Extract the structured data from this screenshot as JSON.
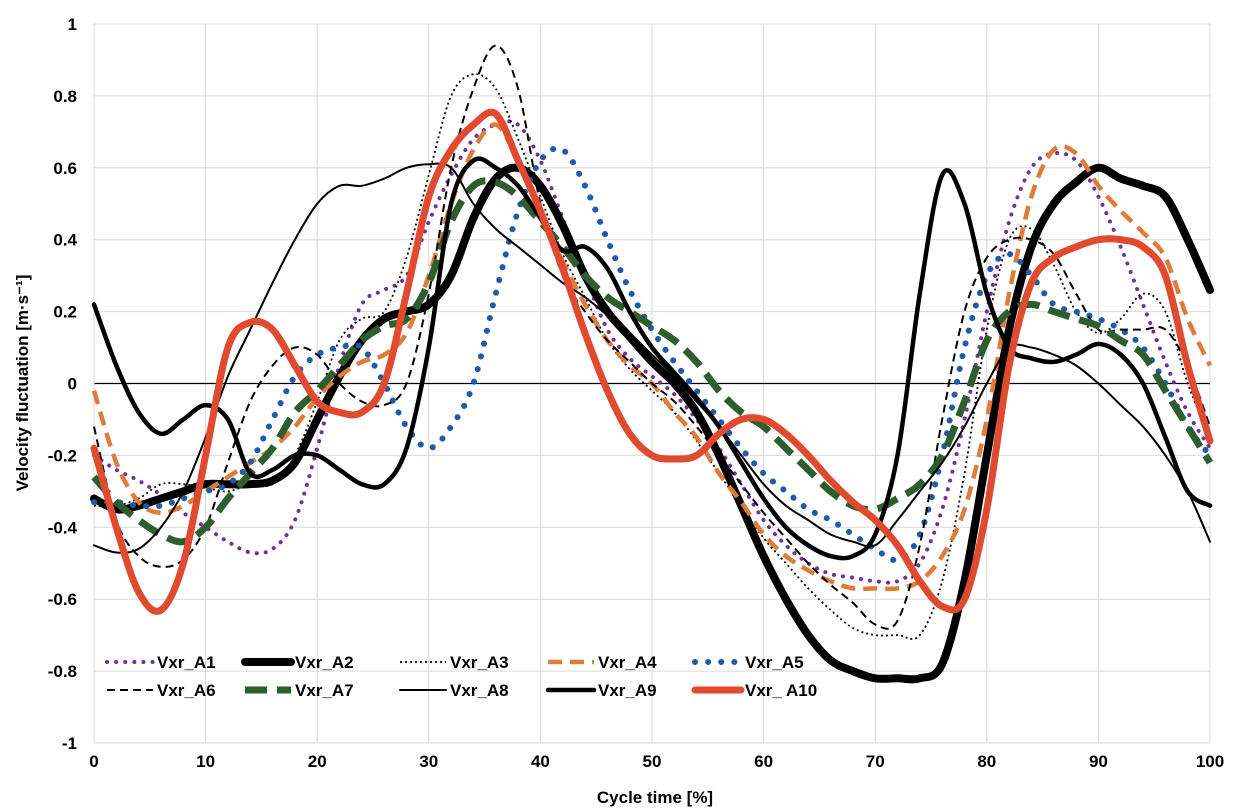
{
  "chart_data": {
    "type": "line",
    "xlabel": "Cycle time [%]",
    "ylabel": "Velocity fluctuation  [m·s⁻¹]",
    "xlim": [
      0,
      100
    ],
    "ylim": [
      -1,
      1
    ],
    "xticks": [
      "0",
      "10",
      "20",
      "30",
      "40",
      "50",
      "60",
      "70",
      "80",
      "90",
      "100"
    ],
    "yticks": [
      "1",
      "0.8",
      "0.6",
      "0.4",
      "0.2",
      "0",
      "-0.2",
      "-0.4",
      "-0.6",
      "-0.8",
      "-1"
    ],
    "grid": true,
    "legend_position": "bottom-left",
    "series": [
      {
        "name": "Vxr_A1",
        "color": "#7030a0",
        "style": "dotted",
        "width": 4,
        "x": [
          0,
          2,
          4,
          6,
          8,
          10,
          12,
          14,
          16,
          18,
          20,
          22,
          24,
          26,
          28,
          30,
          32,
          34,
          36,
          38,
          40,
          42,
          44,
          46,
          48,
          50,
          52,
          54,
          56,
          58,
          60,
          62,
          64,
          66,
          68,
          70,
          72,
          74,
          76,
          78,
          80,
          82,
          84,
          86,
          88,
          90,
          92,
          94,
          96,
          98,
          100
        ],
        "y": [
          -0.2,
          -0.24,
          -0.27,
          -0.31,
          -0.36,
          -0.4,
          -0.44,
          -0.47,
          -0.46,
          -0.38,
          -0.18,
          0.05,
          0.22,
          0.26,
          0.3,
          0.45,
          0.58,
          0.68,
          0.72,
          0.72,
          0.62,
          0.46,
          0.3,
          0.15,
          0.07,
          0.02,
          -0.03,
          -0.1,
          -0.18,
          -0.28,
          -0.38,
          -0.45,
          -0.5,
          -0.53,
          -0.54,
          -0.55,
          -0.55,
          -0.5,
          -0.35,
          -0.1,
          0.2,
          0.45,
          0.6,
          0.64,
          0.62,
          0.52,
          0.38,
          0.22,
          0.06,
          -0.08,
          -0.18
        ]
      },
      {
        "name": "Vxr_A2",
        "color": "#000000",
        "style": "solid",
        "width": 8,
        "x": [
          0,
          2,
          4,
          6,
          8,
          10,
          12,
          14,
          16,
          18,
          20,
          22,
          24,
          26,
          28,
          30,
          32,
          34,
          36,
          38,
          40,
          42,
          44,
          46,
          48,
          50,
          52,
          54,
          56,
          58,
          60,
          62,
          64,
          66,
          68,
          70,
          72,
          74,
          76,
          78,
          80,
          82,
          84,
          86,
          88,
          90,
          92,
          94,
          96,
          98,
          100
        ],
        "y": [
          -0.32,
          -0.35,
          -0.34,
          -0.32,
          -0.3,
          -0.28,
          -0.28,
          -0.28,
          -0.27,
          -0.22,
          -0.1,
          0.02,
          0.12,
          0.18,
          0.2,
          0.22,
          0.3,
          0.46,
          0.57,
          0.6,
          0.55,
          0.44,
          0.3,
          0.2,
          0.13,
          0.06,
          0.0,
          -0.08,
          -0.2,
          -0.34,
          -0.48,
          -0.6,
          -0.7,
          -0.77,
          -0.8,
          -0.82,
          -0.82,
          -0.82,
          -0.78,
          -0.55,
          -0.2,
          0.15,
          0.38,
          0.5,
          0.56,
          0.6,
          0.57,
          0.55,
          0.52,
          0.4,
          0.26
        ]
      },
      {
        "name": "Vxr_A3",
        "color": "#000000",
        "style": "dotted-fine",
        "width": 1.8,
        "x": [
          0,
          2,
          4,
          6,
          8,
          10,
          12,
          14,
          16,
          18,
          20,
          22,
          24,
          26,
          28,
          30,
          32,
          34,
          36,
          38,
          40,
          42,
          44,
          46,
          48,
          50,
          52,
          54,
          56,
          58,
          60,
          62,
          64,
          66,
          68,
          70,
          72,
          74,
          76,
          78,
          80,
          82,
          84,
          86,
          88,
          90,
          92,
          94,
          96,
          98,
          100
        ],
        "y": [
          -0.34,
          -0.34,
          -0.32,
          -0.28,
          -0.28,
          -0.29,
          -0.3,
          -0.28,
          -0.28,
          -0.2,
          -0.05,
          0.12,
          0.18,
          0.2,
          0.35,
          0.58,
          0.8,
          0.86,
          0.82,
          0.68,
          0.52,
          0.36,
          0.24,
          0.12,
          0.04,
          -0.02,
          -0.08,
          -0.16,
          -0.25,
          -0.34,
          -0.43,
          -0.5,
          -0.57,
          -0.63,
          -0.68,
          -0.7,
          -0.7,
          -0.7,
          -0.55,
          -0.25,
          0.15,
          0.4,
          0.43,
          0.33,
          0.2,
          0.14,
          0.18,
          0.25,
          0.2,
          0.0,
          -0.15
        ]
      },
      {
        "name": "Vxr_A4",
        "color": "#e07b39",
        "style": "dashed",
        "width": 4.5,
        "x": [
          0,
          2,
          4,
          6,
          8,
          10,
          12,
          14,
          16,
          18,
          20,
          22,
          24,
          26,
          28,
          30,
          32,
          34,
          36,
          38,
          40,
          42,
          44,
          46,
          48,
          50,
          52,
          54,
          56,
          58,
          60,
          62,
          64,
          66,
          68,
          70,
          72,
          74,
          76,
          78,
          80,
          82,
          84,
          86,
          88,
          90,
          92,
          94,
          96,
          98,
          100
        ],
        "y": [
          -0.02,
          -0.22,
          -0.33,
          -0.36,
          -0.34,
          -0.3,
          -0.26,
          -0.22,
          -0.18,
          -0.12,
          -0.04,
          0.02,
          0.06,
          0.08,
          0.14,
          0.3,
          0.5,
          0.65,
          0.72,
          0.62,
          0.48,
          0.34,
          0.22,
          0.12,
          0.05,
          0.0,
          -0.08,
          -0.15,
          -0.25,
          -0.33,
          -0.42,
          -0.48,
          -0.52,
          -0.55,
          -0.57,
          -0.57,
          -0.57,
          -0.55,
          -0.48,
          -0.35,
          -0.1,
          0.25,
          0.52,
          0.65,
          0.64,
          0.55,
          0.48,
          0.42,
          0.35,
          0.18,
          0.05
        ]
      },
      {
        "name": "Vxr_A5",
        "color": "#1f5ba8",
        "style": "dots",
        "width": 6,
        "x": [
          0,
          2,
          4,
          6,
          8,
          10,
          12,
          14,
          16,
          18,
          20,
          22,
          24,
          26,
          28,
          30,
          32,
          34,
          36,
          38,
          40,
          42,
          44,
          46,
          48,
          50,
          52,
          54,
          56,
          58,
          60,
          62,
          64,
          66,
          68,
          70,
          72,
          74,
          76,
          78,
          80,
          82,
          84,
          86,
          88,
          90,
          92,
          94,
          96,
          98,
          100
        ],
        "y": [
          -0.33,
          -0.33,
          -0.34,
          -0.34,
          -0.32,
          -0.3,
          -0.28,
          -0.22,
          -0.1,
          0.02,
          0.08,
          0.1,
          0.1,
          0.0,
          -0.12,
          -0.18,
          -0.12,
          0.0,
          0.25,
          0.48,
          0.62,
          0.65,
          0.55,
          0.4,
          0.26,
          0.15,
          0.06,
          -0.02,
          -0.1,
          -0.18,
          -0.25,
          -0.3,
          -0.35,
          -0.38,
          -0.42,
          -0.46,
          -0.49,
          -0.42,
          -0.2,
          0.1,
          0.3,
          0.36,
          0.3,
          0.22,
          0.2,
          0.18,
          0.15,
          0.1,
          0.0,
          -0.12,
          -0.2
        ]
      },
      {
        "name": "Vxr_A6",
        "color": "#000000",
        "style": "dashed-thin",
        "width": 2,
        "x": [
          0,
          2,
          4,
          6,
          8,
          10,
          12,
          14,
          16,
          18,
          20,
          22,
          24,
          26,
          28,
          30,
          32,
          34,
          36,
          38,
          40,
          42,
          44,
          46,
          48,
          50,
          52,
          54,
          56,
          58,
          60,
          62,
          64,
          66,
          68,
          70,
          72,
          74,
          76,
          78,
          80,
          82,
          84,
          86,
          88,
          90,
          92,
          94,
          96,
          98,
          100
        ],
        "y": [
          -0.12,
          -0.38,
          -0.48,
          -0.51,
          -0.49,
          -0.4,
          -0.22,
          -0.05,
          0.05,
          0.1,
          0.08,
          0.0,
          -0.05,
          -0.06,
          0.0,
          0.25,
          0.6,
          0.82,
          0.94,
          0.82,
          0.5,
          0.3,
          0.2,
          0.12,
          0.06,
          0.0,
          -0.05,
          -0.12,
          -0.2,
          -0.28,
          -0.36,
          -0.43,
          -0.5,
          -0.56,
          -0.61,
          -0.67,
          -0.66,
          -0.45,
          -0.1,
          0.2,
          0.35,
          0.4,
          0.4,
          0.36,
          0.25,
          0.15,
          0.15,
          0.15,
          0.15,
          0.05,
          -0.12
        ]
      },
      {
        "name": "Vxr_A7",
        "color": "#2e5e2e",
        "style": "long-dash",
        "width": 7,
        "x": [
          0,
          2,
          4,
          6,
          8,
          10,
          12,
          14,
          16,
          18,
          20,
          22,
          24,
          26,
          28,
          30,
          32,
          34,
          36,
          38,
          40,
          42,
          44,
          46,
          48,
          50,
          52,
          54,
          56,
          58,
          60,
          62,
          64,
          66,
          68,
          70,
          72,
          74,
          76,
          78,
          80,
          82,
          84,
          86,
          88,
          90,
          92,
          94,
          96,
          98,
          100
        ],
        "y": [
          -0.26,
          -0.33,
          -0.38,
          -0.42,
          -0.44,
          -0.4,
          -0.32,
          -0.25,
          -0.18,
          -0.08,
          -0.02,
          0.05,
          0.12,
          0.16,
          0.18,
          0.28,
          0.45,
          0.55,
          0.56,
          0.52,
          0.45,
          0.38,
          0.3,
          0.24,
          0.2,
          0.16,
          0.12,
          0.06,
          -0.02,
          -0.08,
          -0.12,
          -0.18,
          -0.24,
          -0.3,
          -0.34,
          -0.35,
          -0.32,
          -0.28,
          -0.2,
          -0.05,
          0.12,
          0.2,
          0.22,
          0.2,
          0.18,
          0.16,
          0.12,
          0.08,
          -0.02,
          -0.12,
          -0.22
        ]
      },
      {
        "name": "Vxr_A8",
        "color": "#000000",
        "style": "solid",
        "width": 2,
        "x": [
          0,
          2,
          4,
          6,
          8,
          10,
          12,
          14,
          16,
          18,
          20,
          22,
          24,
          26,
          28,
          30,
          32,
          34,
          36,
          38,
          40,
          42,
          44,
          46,
          48,
          50,
          52,
          54,
          56,
          58,
          60,
          62,
          64,
          66,
          68,
          70,
          72,
          74,
          76,
          78,
          80,
          82,
          84,
          86,
          88,
          90,
          92,
          94,
          96,
          98,
          100
        ],
        "y": [
          -0.45,
          -0.47,
          -0.46,
          -0.4,
          -0.3,
          -0.15,
          0.02,
          0.15,
          0.28,
          0.4,
          0.5,
          0.55,
          0.55,
          0.57,
          0.6,
          0.61,
          0.6,
          0.5,
          0.43,
          0.38,
          0.33,
          0.28,
          0.24,
          0.19,
          0.14,
          0.08,
          0.02,
          -0.05,
          -0.12,
          -0.2,
          -0.28,
          -0.34,
          -0.38,
          -0.42,
          -0.44,
          -0.45,
          -0.38,
          -0.3,
          -0.22,
          -0.12,
          0.0,
          0.1,
          0.1,
          0.08,
          0.05,
          0.0,
          -0.06,
          -0.12,
          -0.2,
          -0.3,
          -0.44
        ]
      },
      {
        "name": "Vxr_A9",
        "color": "#000000",
        "style": "solid",
        "width": 4.5,
        "x": [
          0,
          2,
          4,
          6,
          8,
          10,
          12,
          14,
          16,
          18,
          20,
          22,
          24,
          26,
          28,
          30,
          32,
          34,
          36,
          38,
          40,
          42,
          44,
          46,
          48,
          50,
          52,
          54,
          56,
          58,
          60,
          62,
          64,
          66,
          68,
          70,
          72,
          74,
          76,
          78,
          80,
          82,
          84,
          86,
          88,
          90,
          92,
          94,
          96,
          98,
          100
        ],
        "y": [
          0.22,
          0.05,
          -0.08,
          -0.14,
          -0.1,
          -0.06,
          -0.1,
          -0.25,
          -0.24,
          -0.2,
          -0.2,
          -0.24,
          -0.28,
          -0.28,
          -0.18,
          0.1,
          0.5,
          0.62,
          0.6,
          0.55,
          0.46,
          0.37,
          0.38,
          0.32,
          0.2,
          0.1,
          0.03,
          -0.04,
          -0.12,
          -0.22,
          -0.32,
          -0.4,
          -0.45,
          -0.48,
          -0.48,
          -0.42,
          -0.2,
          0.25,
          0.58,
          0.5,
          0.25,
          0.1,
          0.07,
          0.06,
          0.08,
          0.11,
          0.08,
          0.0,
          -0.15,
          -0.3,
          -0.34
        ]
      },
      {
        "name": "Vxr_ A10",
        "color": "#e04a2f",
        "style": "solid",
        "width": 7,
        "x": [
          0,
          2,
          4,
          6,
          8,
          10,
          12,
          14,
          16,
          18,
          20,
          22,
          24,
          26,
          28,
          30,
          32,
          34,
          36,
          38,
          40,
          42,
          44,
          46,
          48,
          50,
          52,
          54,
          56,
          58,
          60,
          62,
          64,
          66,
          68,
          70,
          72,
          74,
          76,
          78,
          80,
          82,
          84,
          86,
          88,
          90,
          92,
          94,
          96,
          98,
          100
        ],
        "y": [
          -0.18,
          -0.4,
          -0.58,
          -0.63,
          -0.5,
          -0.2,
          0.1,
          0.17,
          0.15,
          0.05,
          -0.05,
          -0.08,
          -0.08,
          0.0,
          0.25,
          0.52,
          0.65,
          0.72,
          0.75,
          0.62,
          0.48,
          0.32,
          0.14,
          -0.02,
          -0.14,
          -0.2,
          -0.21,
          -0.2,
          -0.14,
          -0.1,
          -0.1,
          -0.14,
          -0.2,
          -0.27,
          -0.33,
          -0.38,
          -0.45,
          -0.55,
          -0.62,
          -0.6,
          -0.35,
          0.05,
          0.28,
          0.35,
          0.38,
          0.4,
          0.4,
          0.38,
          0.3,
          0.05,
          -0.16
        ]
      }
    ]
  }
}
